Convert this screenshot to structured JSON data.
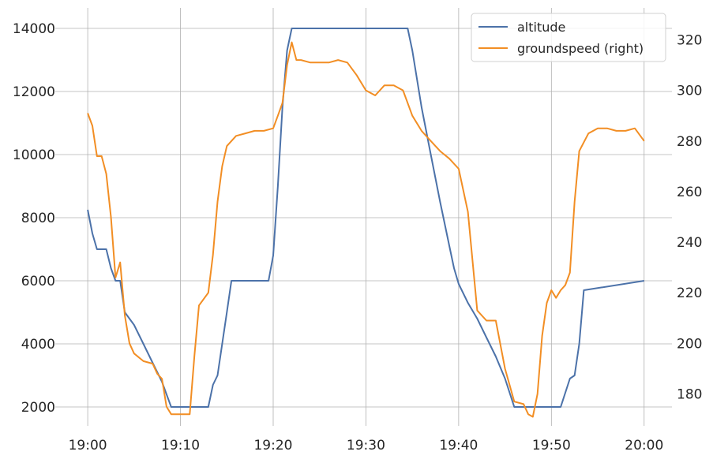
{
  "chart_data": {
    "type": "line",
    "x_axis": {
      "type": "time",
      "ticks": [
        "19:00",
        "19:10",
        "19:20",
        "19:30",
        "19:40",
        "19:50",
        "20:00"
      ],
      "range_minutes_after_1900": [
        -3.5,
        63
      ]
    },
    "y_left": {
      "ticks": [
        2000,
        4000,
        6000,
        8000,
        10000,
        12000,
        14000
      ],
      "range": [
        1400,
        14650
      ]
    },
    "y_right": {
      "ticks": [
        180,
        200,
        220,
        240,
        260,
        280,
        300,
        320
      ],
      "range": [
        167.4,
        332.6
      ]
    },
    "grid": true,
    "legend": {
      "position": "top-right",
      "entries": [
        {
          "label": "altitude",
          "color": "#4c72a9"
        },
        {
          "label": "groundspeed (right)",
          "color": "#f28e24"
        }
      ]
    },
    "series": [
      {
        "name": "altitude",
        "axis": "left",
        "color": "#4c72a9",
        "x": [
          "19:00",
          "19:00:30",
          "19:01",
          "19:02",
          "19:02:30",
          "19:03",
          "19:03:30",
          "19:04",
          "19:05",
          "19:06",
          "19:07",
          "19:08",
          "19:08:30",
          "19:09",
          "19:12",
          "19:13",
          "19:13:30",
          "19:14",
          "19:15",
          "19:15:30",
          "19:19",
          "19:19:30",
          "19:20",
          "19:20:30",
          "19:21",
          "19:21:30",
          "19:22",
          "19:22:30",
          "19:23",
          "19:34",
          "19:34:30",
          "19:35",
          "19:36",
          "19:37",
          "19:38",
          "19:39",
          "19:39:30",
          "19:40",
          "19:41",
          "19:42",
          "19:43",
          "19:44",
          "19:45",
          "19:46",
          "19:50",
          "19:51",
          "19:52",
          "19:52:30",
          "19:53",
          "19:53:30",
          "20:00"
        ],
        "values": [
          8250,
          7500,
          7000,
          7000,
          6400,
          6000,
          6000,
          5000,
          4600,
          4000,
          3400,
          2800,
          2400,
          2000,
          2000,
          2000,
          2700,
          3000,
          5000,
          6000,
          6000,
          6000,
          6800,
          9000,
          11500,
          13300,
          14000,
          14000,
          14000,
          14000,
          14000,
          13300,
          11500,
          10000,
          8500,
          7100,
          6400,
          5900,
          5300,
          4800,
          4200,
          3600,
          2900,
          2000,
          2000,
          2000,
          2900,
          3000,
          4000,
          5700,
          6000
        ]
      },
      {
        "name": "groundspeed (right)",
        "axis": "right",
        "color": "#f28e24",
        "x": [
          "19:00",
          "19:00:30",
          "19:01",
          "19:01:30",
          "19:02",
          "19:02:30",
          "19:03",
          "19:03:30",
          "19:04",
          "19:04:30",
          "19:05",
          "19:06",
          "19:07",
          "19:07:30",
          "19:08",
          "19:08:30",
          "19:09",
          "19:10",
          "19:11",
          "19:11:30",
          "19:12",
          "19:13",
          "19:13:30",
          "19:14",
          "19:14:30",
          "19:15",
          "19:16",
          "19:17",
          "19:18",
          "19:19",
          "19:20",
          "19:20:30",
          "19:21",
          "19:21:30",
          "19:22",
          "19:22:30",
          "19:23",
          "19:24",
          "19:25",
          "19:26",
          "19:27",
          "19:28",
          "19:29",
          "19:30",
          "19:31",
          "19:32",
          "19:33",
          "19:34",
          "19:35",
          "19:36",
          "19:37",
          "19:38",
          "19:39",
          "19:40",
          "19:41",
          "19:42",
          "19:43",
          "19:44",
          "19:45",
          "19:46",
          "19:47",
          "19:47:30",
          "19:48",
          "19:48:30",
          "19:49",
          "19:49:30",
          "19:50",
          "19:50:30",
          "19:51",
          "19:51:30",
          "19:52",
          "19:52:30",
          "19:53",
          "19:54",
          "19:55",
          "19:56",
          "19:57",
          "19:58",
          "19:59",
          "20:00"
        ],
        "values": [
          291,
          286,
          274,
          274,
          267,
          250,
          226,
          232,
          211,
          200,
          196,
          193,
          192,
          188,
          186,
          175,
          172,
          172,
          172,
          195,
          215,
          220,
          235,
          256,
          270,
          278,
          282,
          283,
          284,
          284,
          285,
          290,
          295,
          310,
          319,
          312,
          312,
          311,
          311,
          311,
          312,
          311,
          306,
          300,
          298,
          302,
          302,
          300,
          290,
          284,
          280,
          276,
          273,
          269,
          252,
          213,
          209,
          209,
          190,
          177,
          176,
          172,
          171,
          180,
          203,
          216,
          221,
          218,
          221,
          223,
          228,
          256,
          276,
          283,
          285,
          285,
          284,
          284,
          285,
          280
        ]
      }
    ]
  }
}
